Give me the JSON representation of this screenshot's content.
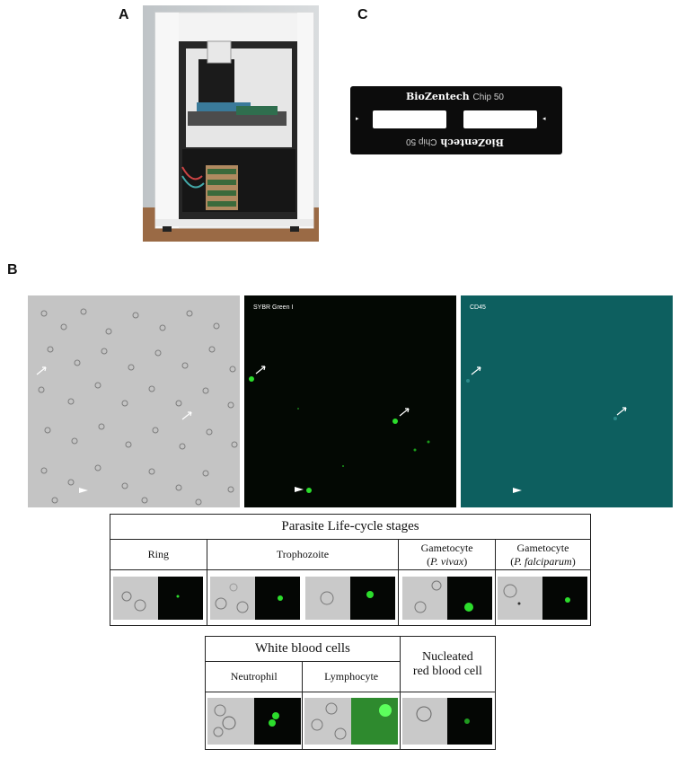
{
  "panels": {
    "a": "A",
    "b": "B",
    "c": "C"
  },
  "chip": {
    "brand": "BioZentech",
    "model": "Chip 50"
  },
  "micrographs": [
    {
      "channel": "",
      "type": "brightfield"
    },
    {
      "channel": "SYBR Green I",
      "type": "fluorescence-green"
    },
    {
      "channel": "CD45",
      "type": "fluorescence-teal"
    }
  ],
  "colors": {
    "sybr_green": "#2cdc2c",
    "cd45_bg": "#0d5f5f",
    "brightfield_bg": "#c8c8c8"
  },
  "parasite_table": {
    "title": "Parasite Life-cycle stages",
    "headers": [
      {
        "line1": "Ring",
        "line2": ""
      },
      {
        "line1": "Trophozoite",
        "line2": ""
      },
      {
        "line1": "Gametocyte",
        "line2": "P. vivax"
      },
      {
        "line1": "Gametocyte",
        "line2": "P. falciparum"
      }
    ]
  },
  "wbc_table": {
    "title": "White blood cells",
    "headers": [
      "Neutrophil",
      "Lymphocyte"
    ],
    "nrbc_title_line1": "Nucleated",
    "nrbc_title_line2": "red blood cell"
  }
}
